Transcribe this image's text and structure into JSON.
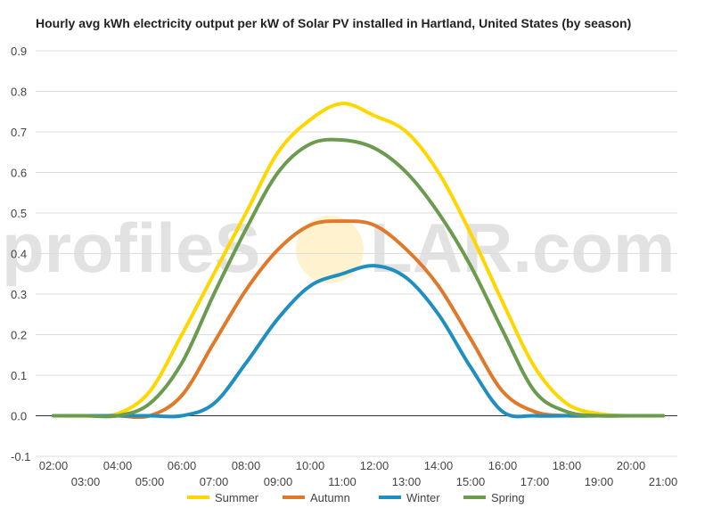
{
  "chart_data": {
    "type": "line",
    "title": "Hourly avg kWh electricity output per kW of Solar PV installed in Hartland, United States (by season)",
    "xlabel": "",
    "ylabel": "",
    "ylim": [
      -0.1,
      0.9
    ],
    "yticks": [
      "-0.1",
      "0.0",
      "0.1",
      "0.2",
      "0.3",
      "0.4",
      "0.5",
      "0.6",
      "0.7",
      "0.8",
      "0.9"
    ],
    "xticks_upper": [
      "02:00",
      "04:00",
      "06:00",
      "08:00",
      "10:00",
      "12:00",
      "14:00",
      "16:00",
      "18:00",
      "20:00"
    ],
    "xticks_lower": [
      "03:00",
      "05:00",
      "07:00",
      "09:00",
      "11:00",
      "13:00",
      "15:00",
      "17:00",
      "19:00",
      "21:00"
    ],
    "x": [
      "02:00",
      "03:00",
      "04:00",
      "05:00",
      "06:00",
      "07:00",
      "08:00",
      "09:00",
      "10:00",
      "11:00",
      "12:00",
      "13:00",
      "14:00",
      "15:00",
      "16:00",
      "17:00",
      "18:00",
      "19:00",
      "20:00",
      "21:00"
    ],
    "grid": true,
    "legend_position": "bottom",
    "series": [
      {
        "name": "Summer",
        "color": "#FFD700",
        "values": [
          0.0,
          0.0,
          0.005,
          0.06,
          0.2,
          0.35,
          0.5,
          0.65,
          0.73,
          0.77,
          0.74,
          0.7,
          0.6,
          0.45,
          0.28,
          0.12,
          0.03,
          0.005,
          0.0,
          0.0
        ]
      },
      {
        "name": "Autumn",
        "color": "#E0792A",
        "values": [
          0.0,
          0.0,
          0.0,
          0.0,
          0.05,
          0.18,
          0.31,
          0.41,
          0.47,
          0.48,
          0.47,
          0.41,
          0.32,
          0.19,
          0.06,
          0.01,
          0.0,
          0.0,
          0.0,
          0.0
        ]
      },
      {
        "name": "Winter",
        "color": "#1F8FBF",
        "values": [
          0.0,
          0.0,
          0.0,
          0.0,
          0.0,
          0.03,
          0.13,
          0.24,
          0.32,
          0.35,
          0.37,
          0.34,
          0.25,
          0.12,
          0.01,
          0.0,
          0.0,
          0.0,
          0.0,
          0.0
        ]
      },
      {
        "name": "Spring",
        "color": "#6A9B4F",
        "values": [
          0.0,
          0.0,
          0.0,
          0.03,
          0.13,
          0.3,
          0.46,
          0.6,
          0.67,
          0.68,
          0.66,
          0.6,
          0.5,
          0.37,
          0.21,
          0.06,
          0.01,
          0.0,
          0.0,
          0.0
        ]
      }
    ]
  },
  "watermark": {
    "text_left": "profileS",
    "text_right": "LAR.com"
  }
}
